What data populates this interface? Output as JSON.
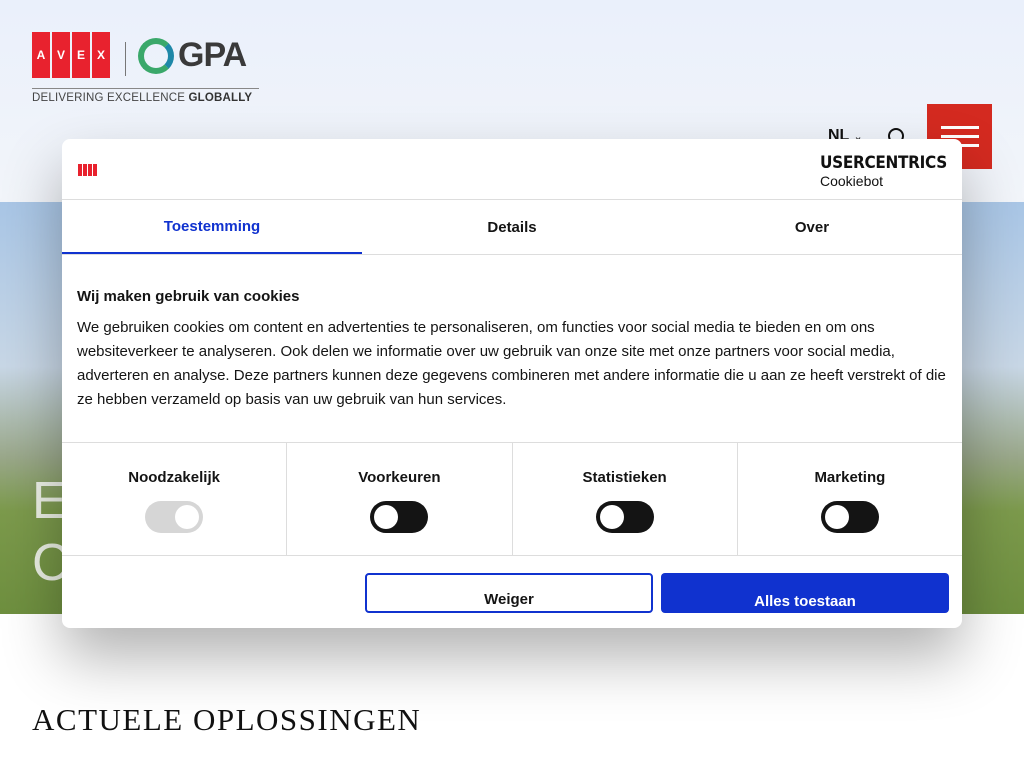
{
  "site": {
    "logo_letters": [
      "A",
      "V",
      "E",
      "X"
    ],
    "logo_gpa": "GPA",
    "tagline_light": "DELIVERING EXCELLENCE ",
    "tagline_bold": "GLOBALLY",
    "lang": "NL",
    "hero_text": "E\nC",
    "section_title": "ACTUELE OPLOSSINGEN"
  },
  "dialog": {
    "provider": "USERCENTRICS",
    "provider_sub": "Cookiebot",
    "tabs": [
      {
        "label": "Toestemming",
        "active": true
      },
      {
        "label": "Details"
      },
      {
        "label": "Over"
      }
    ],
    "heading": "Wij maken gebruik van cookies",
    "text": "We gebruiken cookies om content en advertenties te personaliseren, om functies voor social media te bieden en om ons websiteverkeer te analyseren. Ook delen we informatie over uw gebruik van onze site met onze partners voor social media, adverteren en analyse. Deze partners kunnen deze gegevens combineren met andere informatie die u aan ze heeft verstrekt of die ze hebben verzameld op basis van uw gebruik van hun services.",
    "categories": [
      {
        "label": "Noodzakelijk",
        "enabled": true,
        "disabled": true
      },
      {
        "label": "Voorkeuren",
        "enabled": false
      },
      {
        "label": "Statistieken",
        "enabled": false
      },
      {
        "label": "Marketing",
        "enabled": false
      }
    ],
    "deny": "Weiger",
    "allow_all": "Alles toestaan"
  },
  "colors": {
    "accent": "#1032cf",
    "brand_red": "#d42a20"
  }
}
